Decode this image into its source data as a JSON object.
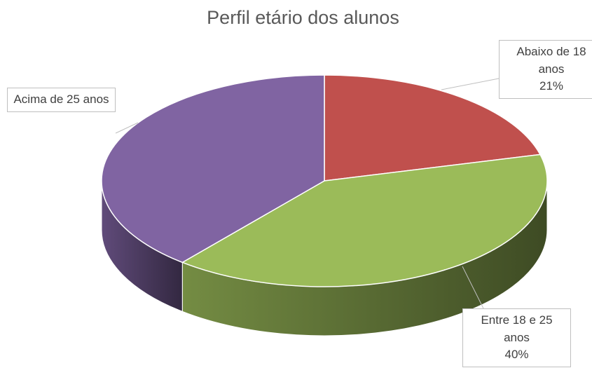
{
  "chart_data": {
    "type": "pie",
    "title": "Perfil etário dos alunos",
    "categories": [
      "Abaixo de 18 anos",
      "Entre 18 e 25 anos",
      "Acima de 25 anos"
    ],
    "values": [
      21,
      40,
      39
    ],
    "value_labels": [
      "21%",
      "40%",
      null
    ],
    "colors": [
      "#c0504d",
      "#9bbb59",
      "#8064a2"
    ]
  }
}
